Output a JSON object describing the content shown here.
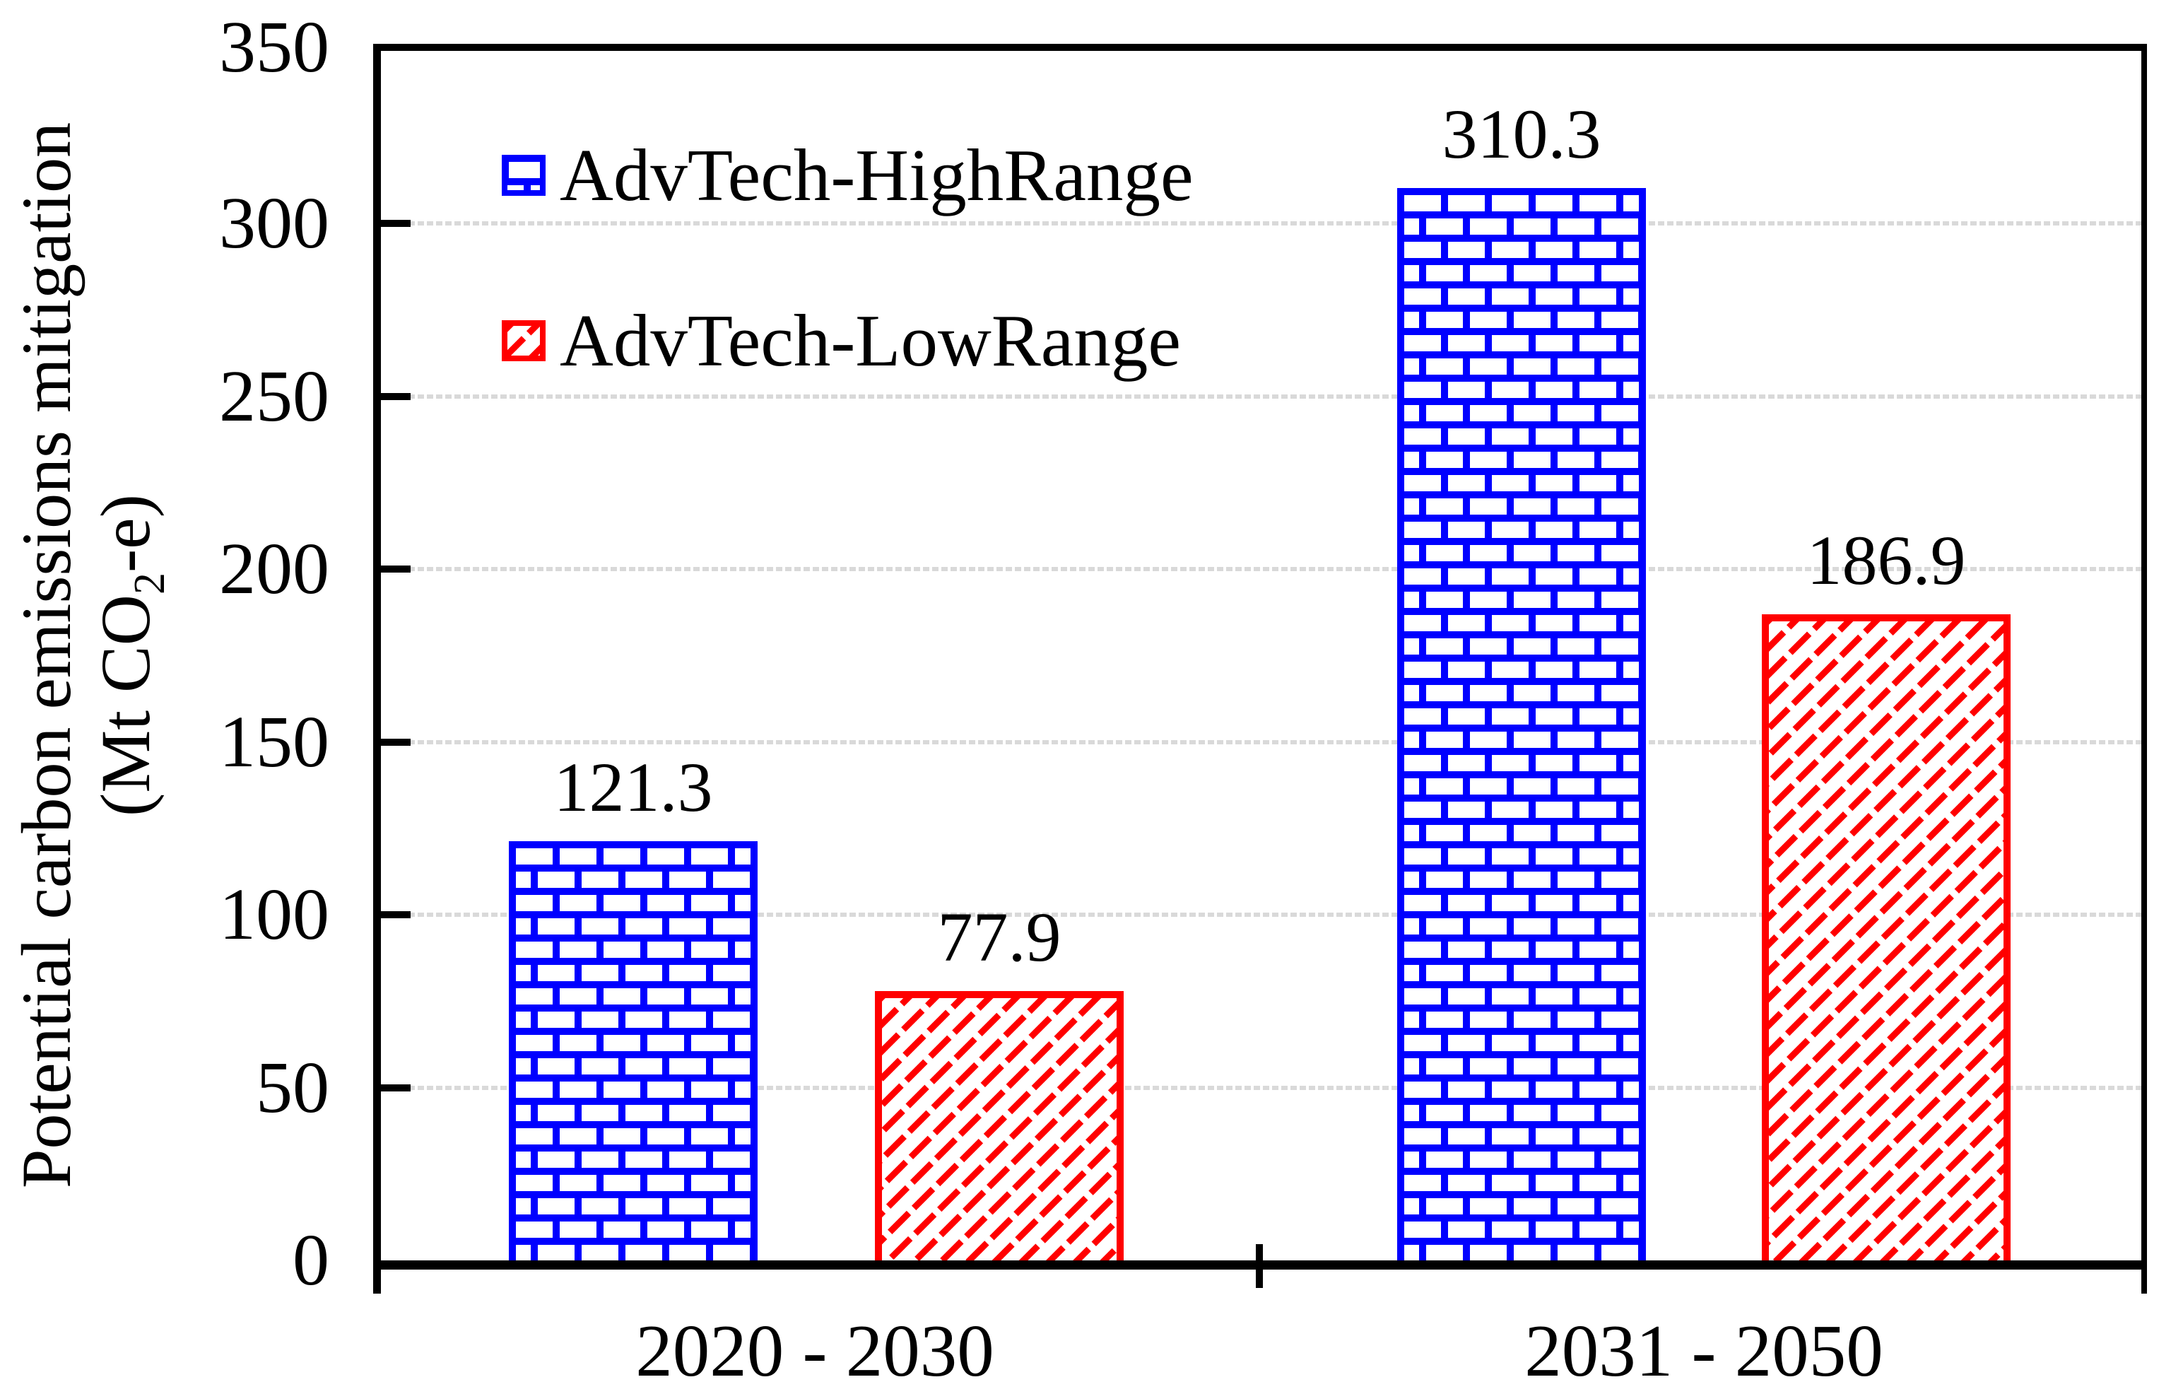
{
  "chart_data": {
    "type": "bar",
    "title": "",
    "categories": [
      "2020 - 2030",
      "2031 - 2050"
    ],
    "series": [
      {
        "name": "AdvTech-HighRange",
        "color": "#0000ff",
        "pattern": "brick",
        "values": [
          121.3,
          310.3
        ]
      },
      {
        "name": "AdvTech-LowRange",
        "color": "#ff0000",
        "pattern": "diagonal-dash",
        "values": [
          77.9,
          186.9
        ]
      }
    ],
    "data_labels": [
      "121.3",
      "77.9",
      "310.3",
      "186.9"
    ],
    "ylabel_line1": "Potential carbon emissions mitigation",
    "ylabel_line2_prefix": "(Mt CO",
    "ylabel_line2_sub": "2",
    "ylabel_line2_suffix": "-e)",
    "ylim": [
      0,
      350
    ],
    "ytick_step": 50,
    "yticks": [
      "0",
      "50",
      "100",
      "150",
      "200",
      "250",
      "300",
      "350"
    ],
    "grid": true,
    "gridline_color": "#d9d9d9",
    "axis_color": "#000000",
    "legend_position": "top-left-inside"
  }
}
